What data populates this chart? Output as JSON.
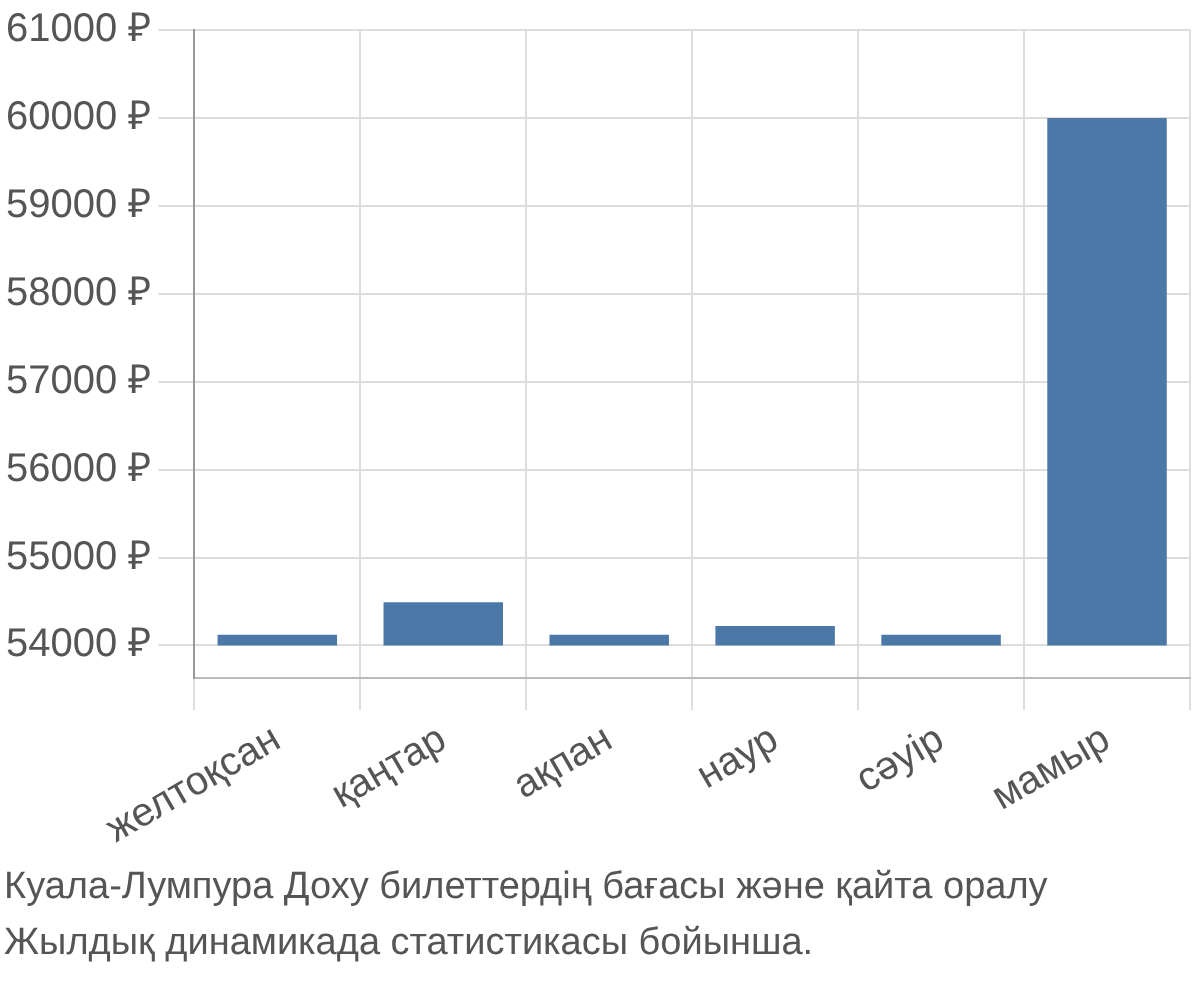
{
  "chart_data": {
    "type": "bar",
    "categories": [
      "желтоқсан",
      "қаңтар",
      "ақпан",
      "наур",
      "сәуір",
      "мамыр"
    ],
    "values": [
      120,
      490,
      120,
      220,
      120,
      6000
    ],
    "base": [
      54000,
      54000,
      54000,
      54000,
      54000,
      54000
    ],
    "color": "#4c78a8",
    "ylim": [
      53630,
      61000
    ],
    "yticks": [
      {
        "value": 54000,
        "label": "54000 ₽"
      },
      {
        "value": 55000,
        "label": "55000 ₽"
      },
      {
        "value": 56000,
        "label": "56000 ₽"
      },
      {
        "value": 57000,
        "label": "57000 ₽"
      },
      {
        "value": 58000,
        "label": "58000 ₽"
      },
      {
        "value": 59000,
        "label": "59000 ₽"
      },
      {
        "value": 60000,
        "label": "60000 ₽"
      },
      {
        "value": 61000,
        "label": "61000 ₽"
      }
    ],
    "grid": true,
    "annotations": [
      "Куала-Лумпура Доху билеттердің бағасы және қайта оралу",
      "Жылдық динамикада статистикасы бойынша."
    ]
  }
}
